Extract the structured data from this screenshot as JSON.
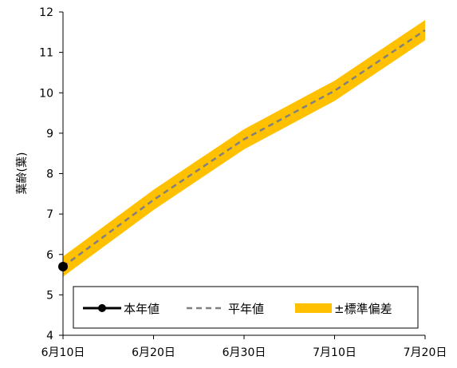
{
  "chart_data": {
    "type": "line",
    "ylabel": "葉齢(葉)",
    "xlabel": "",
    "title": "",
    "x_ticks": [
      "6月10日",
      "6月20日",
      "6月30日",
      "7月10日",
      "7月20日"
    ],
    "x_tick_days": [
      0,
      10,
      20,
      30,
      40
    ],
    "y_ticks": [
      "4",
      "5",
      "6",
      "7",
      "8",
      "9",
      "10",
      "11",
      "12"
    ],
    "xlim": [
      0,
      40
    ],
    "ylim": [
      4,
      12
    ],
    "grid": false,
    "legend_position": "bottom",
    "series": [
      {
        "name": "本年値",
        "style": "solid-marker",
        "color": "#000000",
        "points": [
          {
            "day": 0,
            "value": 5.7
          }
        ]
      },
      {
        "name": "平年値",
        "style": "dashed",
        "color": "#808080",
        "points": [
          {
            "day": 0,
            "value": 5.7
          },
          {
            "day": 10,
            "value": 7.35
          },
          {
            "day": 20,
            "value": 8.85
          },
          {
            "day": 30,
            "value": 10.05
          },
          {
            "day": 40,
            "value": 11.55
          }
        ]
      },
      {
        "name": "±標準偏差",
        "style": "band",
        "color": "#FFC000",
        "points": [
          {
            "day": 0,
            "low": 5.45,
            "high": 5.95
          },
          {
            "day": 10,
            "low": 7.1,
            "high": 7.6
          },
          {
            "day": 20,
            "low": 8.6,
            "high": 9.1
          },
          {
            "day": 30,
            "low": 9.8,
            "high": 10.3
          },
          {
            "day": 40,
            "low": 11.3,
            "high": 11.8
          }
        ]
      }
    ]
  }
}
